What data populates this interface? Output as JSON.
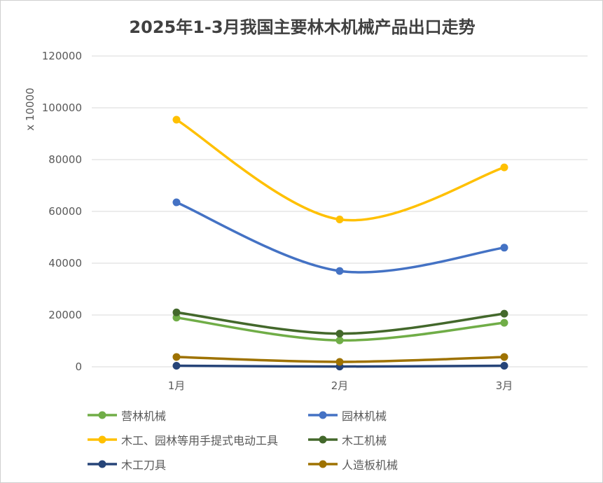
{
  "chart_data": {
    "type": "line",
    "title": "2025年1-3月我国主要林木机械产品出口走势",
    "ylabel": "x 10000",
    "xlabel": "",
    "categories": [
      "1月",
      "2月",
      "3月"
    ],
    "ylim": [
      0,
      120000
    ],
    "yticks": [
      "0",
      "20000",
      "40000",
      "60000",
      "80000",
      "100000",
      "120000"
    ],
    "ytick_values": [
      0,
      20000,
      40000,
      60000,
      80000,
      100000,
      120000
    ],
    "grid": true,
    "smooth": true,
    "legend_position": "bottom",
    "series": [
      {
        "name": "营林机械",
        "color": "#70ad47",
        "values": [
          19000,
          10200,
          17000
        ]
      },
      {
        "name": "园林机械",
        "color": "#4472c4",
        "values": [
          63500,
          37000,
          46000
        ]
      },
      {
        "name": "木工、园林等用手提式电动工具",
        "color": "#ffc000",
        "values": [
          95400,
          56900,
          77000
        ]
      },
      {
        "name": "木工机械",
        "color": "#43682b",
        "values": [
          21000,
          12800,
          20500
        ]
      },
      {
        "name": "木工刀具",
        "color": "#264478",
        "values": [
          400,
          100,
          400
        ]
      },
      {
        "name": "人造板机械",
        "color": "#9e7200",
        "values": [
          3800,
          1900,
          3800
        ]
      }
    ]
  }
}
